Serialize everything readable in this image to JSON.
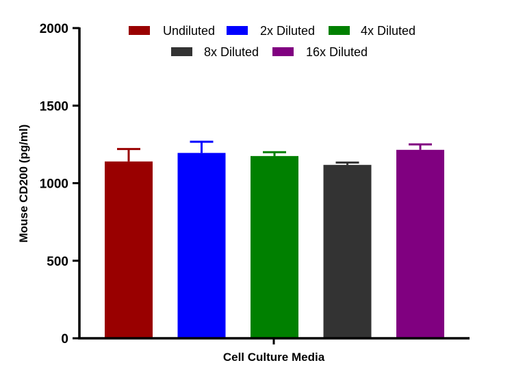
{
  "chart_data": {
    "type": "bar",
    "title": "",
    "xlabel": "Cell Culture Media",
    "ylabel": "Mouse CD200 (pg/ml)",
    "ylim": [
      0,
      2000
    ],
    "yticks": [
      0,
      500,
      1000,
      1500,
      2000
    ],
    "grid": false,
    "legend_position": "top",
    "categories": [
      "Cell Culture Media"
    ],
    "series": [
      {
        "name": "Undiluted",
        "values": [
          1140
        ],
        "error": [
          80
        ],
        "color": "#990000"
      },
      {
        "name": "2x Diluted",
        "values": [
          1195
        ],
        "error": [
          72
        ],
        "color": "#0000FF"
      },
      {
        "name": "4x Diluted",
        "values": [
          1175
        ],
        "error": [
          25
        ],
        "color": "#008000"
      },
      {
        "name": "8x Diluted",
        "values": [
          1118
        ],
        "error": [
          15
        ],
        "color": "#333333"
      },
      {
        "name": "16x Diluted",
        "values": [
          1215
        ],
        "error": [
          35
        ],
        "color": "#800080"
      }
    ]
  }
}
